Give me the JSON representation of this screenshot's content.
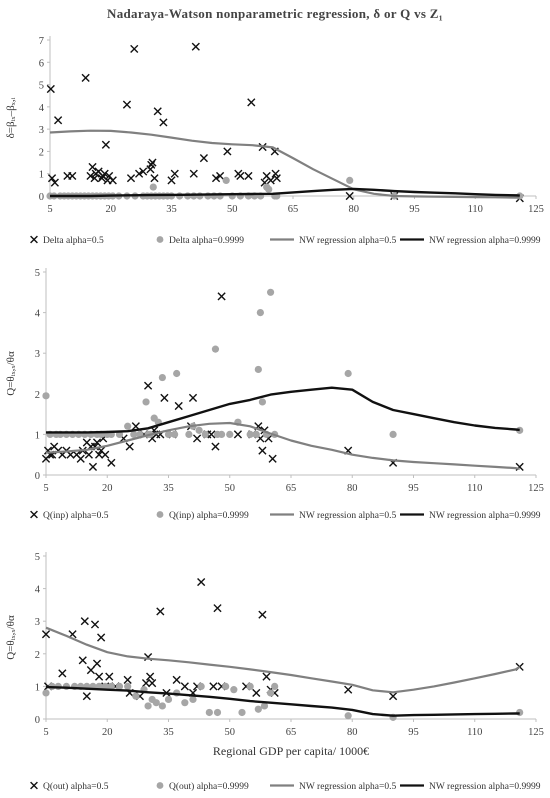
{
  "figure": {
    "title": "Nadaraya-Watson nonparametric regression, δ or Q vs Z₁",
    "colors": {
      "cross": "#111111",
      "dot": "#a6a6a6",
      "nw_half": "#808080",
      "nw_9999": "#111111",
      "axis": "#bfbfbf"
    }
  },
  "chart_data": [
    {
      "type": "scatter",
      "ylabel": "δ=βᵢₓ–βₓ,ᵢ",
      "xlabel": "",
      "xlim": [
        5,
        125
      ],
      "ylim": [
        0,
        7
      ],
      "xticks": [
        5,
        20,
        35,
        50,
        65,
        80,
        95,
        110,
        125
      ],
      "yticks": [
        0,
        1,
        2,
        3,
        4,
        5,
        6,
        7
      ],
      "grid": false,
      "legend_position": "bottom",
      "series": [
        {
          "name": "Delta alpha=0.5",
          "kind": "cross",
          "x": [
            5.2,
            5.5,
            6.2,
            7.0,
            9.3,
            10.5,
            13.8,
            15.0,
            15.5,
            16.0,
            16.3,
            17.0,
            17.8,
            18.0,
            18.5,
            18.8,
            19.2,
            19.6,
            20.5,
            24.0,
            25.0,
            25.8,
            27.0,
            28.0,
            29.8,
            30.0,
            30.3,
            30.8,
            31.6,
            33.0,
            35.0,
            35.8,
            40.5,
            41.0,
            43.0,
            46.0,
            47.0,
            48.8,
            51.5,
            52.0,
            54.0,
            54.7,
            57.5,
            58.0,
            58.5,
            59.5,
            60.5,
            60.7,
            61.0,
            79.0,
            90.0,
            121.0
          ],
          "y": [
            4.8,
            0.8,
            0.6,
            3.4,
            0.9,
            0.9,
            5.3,
            0.9,
            1.3,
            0.8,
            1.0,
            1.1,
            0.8,
            0.9,
            1.0,
            2.3,
            0.7,
            0.9,
            0.7,
            4.1,
            0.8,
            6.6,
            1.0,
            1.1,
            1.2,
            1.4,
            1.5,
            0.8,
            3.8,
            3.3,
            0.7,
            1.0,
            1.0,
            6.7,
            1.7,
            0.8,
            0.9,
            2.0,
            1.0,
            0.9,
            0.9,
            4.2,
            2.2,
            0.6,
            0.9,
            0.7,
            2.0,
            1.0,
            0.8,
            0.0,
            0.0,
            -0.1
          ]
        },
        {
          "name": "Delta alpha=0.9999",
          "kind": "dot",
          "x": [
            5.0,
            6.0,
            7.5,
            8.5,
            9.5,
            10.5,
            11.5,
            12.5,
            13.5,
            14.5,
            15.5,
            16.5,
            17.5,
            18.5,
            19.5,
            20.5,
            22.0,
            24.0,
            26.0,
            28.0,
            29.0,
            30.0,
            30.5,
            31.0,
            32.0,
            33.0,
            34.0,
            35.0,
            37.0,
            39.0,
            40.5,
            42.0,
            44.0,
            45.5,
            47.0,
            48.5,
            50.0,
            52.0,
            54.0,
            55.5,
            57.0,
            58.5,
            59.0,
            60.5,
            61.0,
            79.0,
            90.0,
            121.0
          ],
          "y": [
            0,
            0,
            0,
            0,
            0,
            0,
            0,
            0,
            0,
            0,
            0,
            0,
            0,
            0,
            0,
            0,
            0,
            0,
            0,
            0,
            0,
            0,
            0.4,
            0,
            0,
            0,
            0,
            0,
            0,
            0,
            0,
            0,
            0,
            0,
            0,
            0.7,
            0,
            0,
            0,
            0,
            0,
            0.4,
            0.3,
            0,
            0,
            0.7,
            0,
            0
          ]
        },
        {
          "name": "NW regression alpha=0.5",
          "kind": "line",
          "x": [
            5,
            10,
            15,
            20,
            25,
            30,
            35,
            40,
            45,
            50,
            55,
            60,
            65,
            70,
            75,
            80,
            85,
            90,
            95,
            100,
            105,
            110,
            115,
            120,
            121
          ],
          "y": [
            2.85,
            2.9,
            2.93,
            2.92,
            2.85,
            2.75,
            2.62,
            2.48,
            2.38,
            2.32,
            2.28,
            2.18,
            1.7,
            1.2,
            0.75,
            0.3,
            0.1,
            0.0,
            -0.02,
            -0.03,
            -0.04,
            -0.05,
            -0.06,
            -0.07,
            -0.07
          ]
        },
        {
          "name": "NW regression alpha=0.9999",
          "kind": "line",
          "x": [
            5,
            10,
            15,
            20,
            25,
            30,
            35,
            40,
            45,
            50,
            55,
            60,
            65,
            70,
            75,
            80,
            85,
            90,
            95,
            100,
            105,
            110,
            115,
            120,
            121
          ],
          "y": [
            0.0,
            0.0,
            0.0,
            0.02,
            0.03,
            0.04,
            0.05,
            0.06,
            0.07,
            0.08,
            0.09,
            0.1,
            0.16,
            0.22,
            0.28,
            0.32,
            0.28,
            0.22,
            0.18,
            0.15,
            0.12,
            0.08,
            0.05,
            0.03,
            0.02
          ]
        }
      ]
    },
    {
      "type": "scatter",
      "ylabel": "Q=θᵢₓ,ₓ/θα",
      "xlabel": "",
      "xlim": [
        5,
        125
      ],
      "ylim": [
        0,
        5
      ],
      "xticks": [
        5,
        20,
        35,
        50,
        65,
        80,
        95,
        110,
        125
      ],
      "yticks": [
        0,
        1,
        2,
        3,
        4,
        5
      ],
      "grid": false,
      "legend_position": "bottom",
      "series": [
        {
          "name": "Q(inp) alpha=0.5",
          "kind": "cross",
          "x": [
            5.0,
            5.5,
            6.0,
            6.5,
            7.0,
            8.0,
            9.0,
            10.0,
            11.0,
            12.5,
            13.5,
            14.0,
            15.0,
            15.5,
            16.0,
            16.5,
            17.0,
            17.5,
            18.0,
            18.5,
            19.0,
            19.5,
            21.0,
            24.0,
            25.5,
            27.0,
            29.0,
            30.0,
            30.5,
            31.0,
            31.5,
            32.0,
            33.0,
            34.0,
            36.0,
            37.5,
            40.5,
            41.0,
            42.0,
            44.5,
            45.5,
            46.5,
            48.0,
            52.0,
            55.5,
            57.0,
            57.5,
            58.0,
            58.5,
            59.5,
            60.5,
            79.0,
            90.0,
            121.0
          ],
          "y": [
            0.4,
            0.6,
            0.5,
            0.5,
            0.7,
            0.6,
            0.5,
            0.6,
            0.5,
            0.5,
            0.4,
            0.6,
            0.8,
            0.5,
            0.7,
            0.2,
            0.7,
            0.8,
            0.5,
            0.6,
            0.9,
            0.5,
            0.3,
            0.9,
            0.7,
            1.2,
            1.0,
            2.2,
            1.0,
            0.9,
            1.1,
            1.0,
            1.0,
            1.9,
            1.0,
            1.7,
            1.2,
            1.9,
            0.9,
            1.0,
            1.0,
            0.7,
            4.4,
            1.0,
            1.0,
            1.2,
            0.9,
            0.6,
            1.1,
            0.9,
            0.4,
            0.6,
            0.3,
            0.2
          ]
        },
        {
          "name": "Q(inp) alpha=0.9999",
          "kind": "dot",
          "x": [
            5.0,
            6.0,
            7.5,
            8.5,
            10.0,
            11.5,
            13.0,
            14.5,
            16.0,
            17.5,
            18.5,
            20.0,
            21.0,
            23.0,
            25.0,
            26.5,
            28.0,
            29.5,
            30.0,
            30.5,
            31.5,
            32.5,
            33.5,
            35.0,
            36.5,
            37.0,
            40.0,
            41.0,
            42.5,
            44.0,
            46.5,
            47.0,
            48.0,
            50.0,
            52.0,
            55.0,
            56.5,
            57.0,
            57.5,
            58.0,
            59.0,
            60.0,
            61.0,
            79.0,
            90.0,
            121.0
          ],
          "y": [
            1.95,
            1.0,
            1.0,
            1.0,
            1.0,
            1.0,
            1.0,
            1.0,
            1.0,
            1.0,
            1.0,
            1.0,
            1.0,
            1.0,
            1.2,
            1.0,
            1.0,
            1.8,
            1.0,
            1.0,
            1.4,
            1.3,
            2.4,
            1.0,
            1.0,
            2.5,
            1.0,
            1.2,
            1.1,
            1.0,
            3.1,
            1.0,
            1.0,
            1.0,
            1.3,
            1.0,
            1.0,
            2.6,
            4.0,
            1.8,
            1.0,
            4.5,
            1.0,
            2.5,
            1.0,
            1.1
          ]
        },
        {
          "name": "NW regression alpha=0.5",
          "kind": "line",
          "x": [
            5,
            10,
            15,
            20,
            25,
            30,
            35,
            40,
            45,
            50,
            55,
            60,
            65,
            70,
            75,
            80,
            85,
            90,
            95,
            100,
            105,
            110,
            115,
            120,
            121
          ],
          "y": [
            0.55,
            0.58,
            0.62,
            0.72,
            0.85,
            0.98,
            1.1,
            1.2,
            1.26,
            1.28,
            1.2,
            1.02,
            0.85,
            0.72,
            0.62,
            0.5,
            0.42,
            0.36,
            0.32,
            0.29,
            0.26,
            0.23,
            0.2,
            0.17,
            0.15
          ]
        },
        {
          "name": "NW regression alpha=0.9999",
          "kind": "line",
          "x": [
            5,
            10,
            15,
            20,
            25,
            30,
            35,
            40,
            45,
            50,
            55,
            60,
            65,
            70,
            75,
            80,
            85,
            90,
            95,
            100,
            105,
            110,
            115,
            120,
            121
          ],
          "y": [
            1.05,
            1.05,
            1.05,
            1.06,
            1.08,
            1.15,
            1.3,
            1.45,
            1.6,
            1.75,
            1.85,
            1.98,
            2.05,
            2.1,
            2.15,
            2.1,
            1.8,
            1.6,
            1.5,
            1.4,
            1.3,
            1.22,
            1.16,
            1.12,
            1.11
          ]
        }
      ]
    },
    {
      "type": "scatter",
      "ylabel": "Q=θᵢₓ,ₓ/θα",
      "xlabel": "Regional GDP per capita/ 1000€",
      "xlim": [
        5,
        125
      ],
      "ylim": [
        0,
        5
      ],
      "xticks": [
        5,
        20,
        35,
        50,
        65,
        80,
        95,
        110,
        125
      ],
      "yticks": [
        0,
        1,
        2,
        3,
        4,
        5
      ],
      "grid": false,
      "legend_position": "bottom",
      "series": [
        {
          "name": "Q(out) alpha=0.5",
          "kind": "cross",
          "x": [
            5.0,
            5.5,
            9.0,
            11.5,
            14.0,
            14.5,
            15.0,
            16.0,
            17.0,
            17.5,
            18.0,
            18.5,
            19.5,
            20.5,
            22.0,
            25.0,
            25.5,
            28.0,
            29.5,
            30.0,
            30.5,
            31.0,
            33.0,
            34.5,
            37.0,
            39.0,
            41.0,
            42.0,
            43.0,
            46.0,
            47.0,
            48.0,
            54.0,
            56.5,
            58.0,
            59.0,
            60.0,
            61.0,
            79.0,
            90.0,
            121.0
          ],
          "y": [
            2.6,
            1.0,
            1.4,
            2.6,
            1.8,
            3.0,
            0.7,
            1.5,
            2.9,
            1.7,
            1.3,
            2.5,
            1.0,
            1.3,
            1.0,
            1.2,
            0.8,
            0.7,
            1.1,
            1.9,
            1.3,
            1.1,
            3.3,
            0.8,
            1.2,
            1.0,
            0.8,
            1.0,
            4.2,
            1.0,
            3.4,
            1.0,
            1.0,
            0.8,
            3.2,
            1.3,
            0.9,
            0.8,
            0.9,
            0.7,
            1.6
          ]
        },
        {
          "name": "Q(out) alpha=0.9999",
          "kind": "dot",
          "x": [
            5.0,
            6.5,
            8.0,
            10.0,
            12.0,
            13.5,
            15.0,
            16.5,
            18.0,
            19.5,
            21.0,
            23.0,
            25.0,
            27.0,
            29.0,
            30.0,
            31.0,
            32.0,
            33.5,
            35.0,
            37.0,
            39.0,
            41.0,
            43.0,
            45.0,
            47.0,
            49.0,
            51.0,
            53.0,
            55.0,
            57.0,
            58.5,
            60.0,
            61.0,
            79.0,
            90.0,
            121.0
          ],
          "y": [
            0.8,
            1.0,
            1.0,
            1.0,
            1.0,
            1.0,
            1.0,
            1.0,
            1.0,
            1.0,
            1.0,
            1.0,
            1.0,
            0.7,
            0.9,
            0.4,
            0.6,
            0.5,
            0.4,
            0.6,
            0.8,
            0.5,
            0.6,
            1.0,
            0.2,
            0.2,
            1.0,
            0.9,
            0.2,
            1.0,
            0.3,
            0.4,
            0.8,
            1.0,
            0.1,
            0.05,
            0.2
          ]
        },
        {
          "name": "NW regression alpha=0.5",
          "kind": "line",
          "x": [
            5,
            10,
            15,
            20,
            25,
            30,
            35,
            40,
            45,
            50,
            55,
            60,
            65,
            70,
            75,
            80,
            85,
            90,
            95,
            100,
            105,
            110,
            115,
            120,
            121
          ],
          "y": [
            2.8,
            2.55,
            2.28,
            2.05,
            1.92,
            1.85,
            1.8,
            1.74,
            1.67,
            1.6,
            1.52,
            1.44,
            1.35,
            1.25,
            1.15,
            1.05,
            0.88,
            0.82,
            0.9,
            1.0,
            1.12,
            1.25,
            1.38,
            1.52,
            1.6
          ]
        },
        {
          "name": "NW regression alpha=0.9999",
          "kind": "line",
          "x": [
            5,
            10,
            15,
            20,
            25,
            30,
            35,
            40,
            45,
            50,
            55,
            60,
            65,
            70,
            75,
            80,
            85,
            90,
            95,
            100,
            105,
            110,
            115,
            120,
            121
          ],
          "y": [
            0.98,
            0.96,
            0.93,
            0.9,
            0.87,
            0.82,
            0.78,
            0.73,
            0.68,
            0.62,
            0.55,
            0.5,
            0.45,
            0.4,
            0.35,
            0.28,
            0.15,
            0.1,
            0.12,
            0.13,
            0.14,
            0.15,
            0.16,
            0.17,
            0.17
          ]
        }
      ]
    }
  ]
}
